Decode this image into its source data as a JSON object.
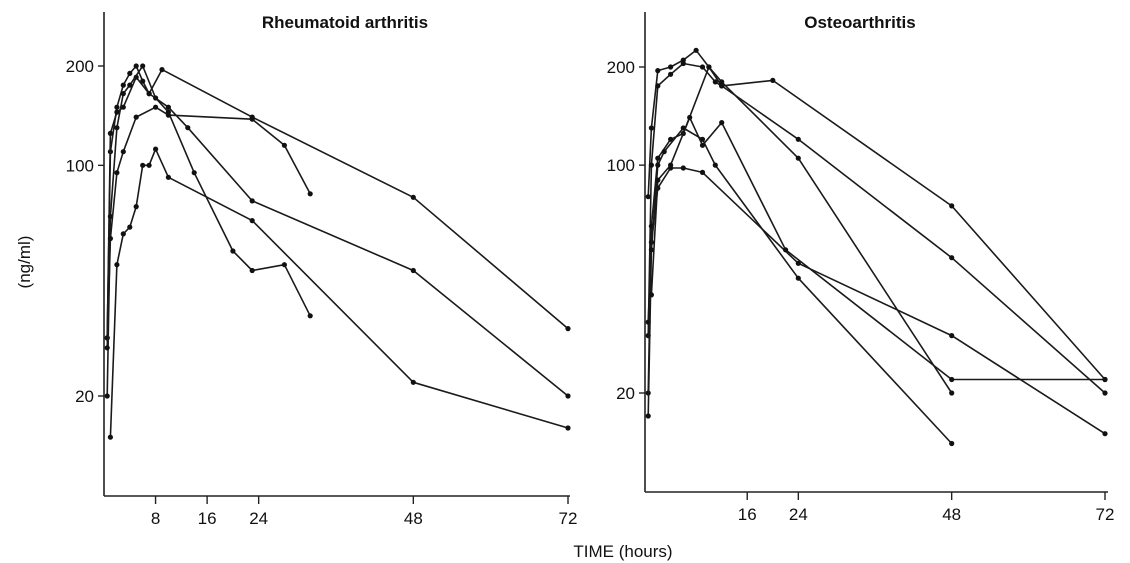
{
  "figure": {
    "xlabel": "TIME (hours)",
    "ylabel": "(ng/ml)"
  },
  "chart_data": [
    {
      "type": "line",
      "title": "Rheumatoid arthritis",
      "xlabel": "TIME (hours)",
      "ylabel": "(ng/ml)",
      "y_scale": "log",
      "y_ticks": [
        20,
        100,
        200
      ],
      "x_ticks": [
        8,
        16,
        24,
        48,
        72
      ],
      "xlim": [
        0,
        72
      ],
      "ylim": [
        12,
        320
      ],
      "grid": false,
      "series": [
        {
          "points": [
            [
              0.5,
              30
            ],
            [
              1,
              110
            ],
            [
              2,
              150
            ],
            [
              3,
              175
            ],
            [
              4,
              190
            ],
            [
              5,
              200
            ],
            [
              6,
              180
            ],
            [
              7,
              165
            ],
            [
              9,
              195
            ],
            [
              23,
              140
            ],
            [
              48,
              80
            ],
            [
              72,
              32
            ]
          ]
        },
        {
          "points": [
            [
              0.5,
              30
            ],
            [
              1,
              125
            ],
            [
              2,
              145
            ],
            [
              3,
              150
            ],
            [
              5,
              185
            ],
            [
              7,
              165
            ],
            [
              10,
              150
            ],
            [
              13,
              130
            ],
            [
              23,
              78
            ],
            [
              48,
              48
            ],
            [
              72,
              20
            ]
          ]
        },
        {
          "points": [
            [
              0.5,
              20
            ],
            [
              1,
              70
            ],
            [
              2,
              130
            ],
            [
              3,
              165
            ],
            [
              4,
              175
            ],
            [
              6,
              200
            ],
            [
              8,
              160
            ],
            [
              10,
              145
            ],
            [
              14,
              95
            ],
            [
              20,
              55
            ],
            [
              23,
              48
            ],
            [
              28,
              50
            ],
            [
              32,
              35
            ]
          ]
        },
        {
          "points": [
            [
              1,
              15
            ],
            [
              2,
              50
            ],
            [
              3,
              62
            ],
            [
              4,
              65
            ],
            [
              5,
              75
            ],
            [
              6,
              100
            ],
            [
              7,
              100
            ],
            [
              8,
              112
            ],
            [
              10,
              92
            ],
            [
              23,
              68
            ],
            [
              48,
              22
            ],
            [
              72,
              16
            ]
          ]
        },
        {
          "points": [
            [
              0.5,
              28
            ],
            [
              1,
              60
            ],
            [
              2,
              95
            ],
            [
              3,
              110
            ],
            [
              5,
              140
            ],
            [
              8,
              150
            ],
            [
              10,
              142
            ],
            [
              23,
              138
            ],
            [
              28,
              115
            ],
            [
              32,
              82
            ]
          ]
        }
      ]
    },
    {
      "type": "line",
      "title": "Osteoarthritis",
      "xlabel": "TIME (hours)",
      "ylabel": "(ng/ml)",
      "y_scale": "log",
      "y_ticks": [
        20,
        100,
        200
      ],
      "x_ticks": [
        16,
        24,
        48,
        72
      ],
      "xlim": [
        0,
        72
      ],
      "ylim": [
        12,
        320
      ],
      "grid": false,
      "series": [
        {
          "points": [
            [
              0.5,
              80
            ],
            [
              1,
              130
            ],
            [
              2,
              195
            ],
            [
              4,
              200
            ],
            [
              6,
              210
            ],
            [
              8,
              225
            ],
            [
              10,
              200
            ],
            [
              12,
              175
            ],
            [
              20,
              182
            ],
            [
              48,
              75
            ],
            [
              72,
              22
            ]
          ]
        },
        {
          "points": [
            [
              0.5,
              30
            ],
            [
              1,
              100
            ],
            [
              2,
              175
            ],
            [
              4,
              190
            ],
            [
              6,
              205
            ],
            [
              9,
              200
            ],
            [
              11,
              180
            ],
            [
              12,
              175
            ],
            [
              24,
              120
            ],
            [
              48,
              52
            ],
            [
              72,
              20
            ]
          ]
        },
        {
          "points": [
            [
              0.5,
              20
            ],
            [
              1,
              65
            ],
            [
              2,
              105
            ],
            [
              4,
              120
            ],
            [
              6,
              125
            ],
            [
              10,
              200
            ],
            [
              12,
              180
            ],
            [
              24,
              105
            ],
            [
              48,
              20
            ]
          ]
        },
        {
          "points": [
            [
              0.5,
              33
            ],
            [
              1,
              58
            ],
            [
              2,
              85
            ],
            [
              4,
              98
            ],
            [
              6,
              98
            ],
            [
              9,
              95
            ],
            [
              24,
              50
            ],
            [
              48,
              30
            ],
            [
              72,
              15
            ]
          ]
        },
        {
          "points": [
            [
              0.5,
              17
            ],
            [
              1,
              55
            ],
            [
              2,
              100
            ],
            [
              3,
              110
            ],
            [
              6,
              130
            ],
            [
              9,
              120
            ],
            [
              11,
              100
            ],
            [
              24,
              45
            ],
            [
              48,
              14
            ]
          ]
        },
        {
          "points": [
            [
              1,
              40
            ],
            [
              2,
              90
            ],
            [
              4,
              100
            ],
            [
              7,
              140
            ],
            [
              9,
              115
            ],
            [
              12,
              135
            ],
            [
              22,
              55
            ],
            [
              48,
              22
            ],
            [
              72,
              22
            ]
          ]
        }
      ]
    }
  ]
}
